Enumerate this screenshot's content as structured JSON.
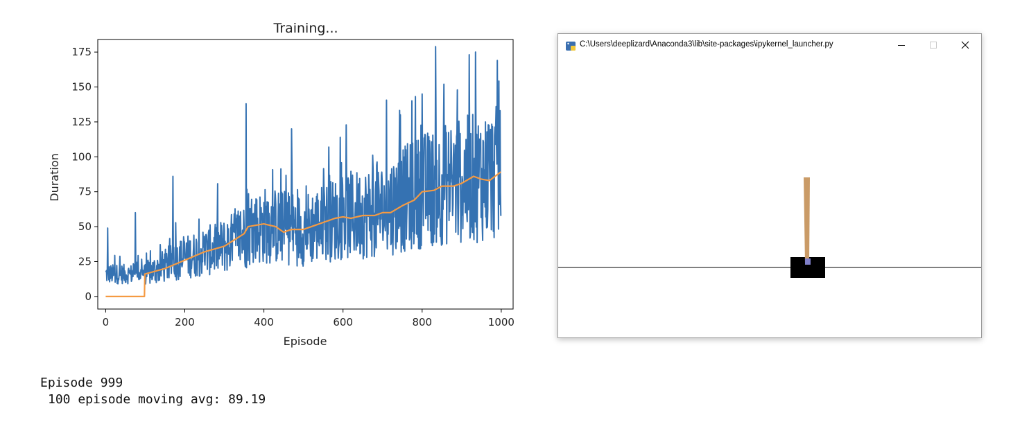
{
  "chart_data": {
    "type": "line",
    "title": "Training...",
    "xlabel": "Episode",
    "ylabel": "Duration",
    "xlim": [
      -20,
      1030
    ],
    "ylim": [
      -9,
      184
    ],
    "xticks": [
      0,
      200,
      400,
      600,
      800,
      1000
    ],
    "yticks": [
      0,
      25,
      50,
      75,
      100,
      125,
      150,
      175
    ],
    "xtick_labels": [
      "0",
      "200",
      "400",
      "600",
      "800",
      "1000"
    ],
    "ytick_labels": [
      "0",
      "25",
      "50",
      "75",
      "100",
      "125",
      "150",
      "175"
    ],
    "grid": false,
    "legend": "none",
    "series": [
      {
        "color": "#3572b2",
        "episodes": 1000,
        "profile_x": [
          0,
          100,
          200,
          300,
          400,
          500,
          600,
          700,
          800,
          900,
          999
        ],
        "profile_y": [
          13,
          16,
          28,
          36,
          51,
          48,
          57,
          62,
          76,
          83,
          89
        ],
        "peaks": [
          [
            5,
            49
          ],
          [
            75,
            60
          ],
          [
            170,
            86
          ],
          [
            355,
            138
          ],
          [
            470,
            120
          ],
          [
            745,
            130
          ],
          [
            800,
            145
          ],
          [
            855,
            152
          ],
          [
            935,
            175
          ],
          [
            990,
            169
          ],
          [
            997,
            133
          ]
        ]
      },
      {
        "color": "#f59a42",
        "x": [
          0,
          98,
          99,
          150,
          200,
          250,
          300,
          350,
          360,
          400,
          430,
          450,
          470,
          500,
          530,
          550,
          580,
          600,
          620,
          650,
          680,
          700,
          720,
          750,
          780,
          800,
          830,
          850,
          880,
          900,
          930,
          950,
          970,
          999
        ],
        "y": [
          0,
          0,
          16,
          20,
          26,
          32,
          36,
          45,
          50,
          52,
          50,
          46,
          48,
          48,
          51,
          53,
          56,
          57,
          56,
          58,
          58,
          60,
          60,
          65,
          69,
          75,
          76,
          79,
          79,
          81,
          86,
          84,
          83,
          89.19
        ]
      }
    ]
  },
  "output": {
    "line1": "Episode 999",
    "line2": "100 episode moving avg: 89.19"
  },
  "window": {
    "title": "C:\\Users\\deeplizard\\Anaconda3\\lib\\site-packages\\ipykernel_launcher.py",
    "icon": "python-icon",
    "minimize_icon": "minimize-icon",
    "maximize_icon": "maximize-icon",
    "close_icon": "close-icon"
  },
  "cartpole": {
    "cart_color": "#000000",
    "pole_color": "#ca9b67",
    "axle_color": "#8080ca",
    "track_color": "#000000"
  }
}
